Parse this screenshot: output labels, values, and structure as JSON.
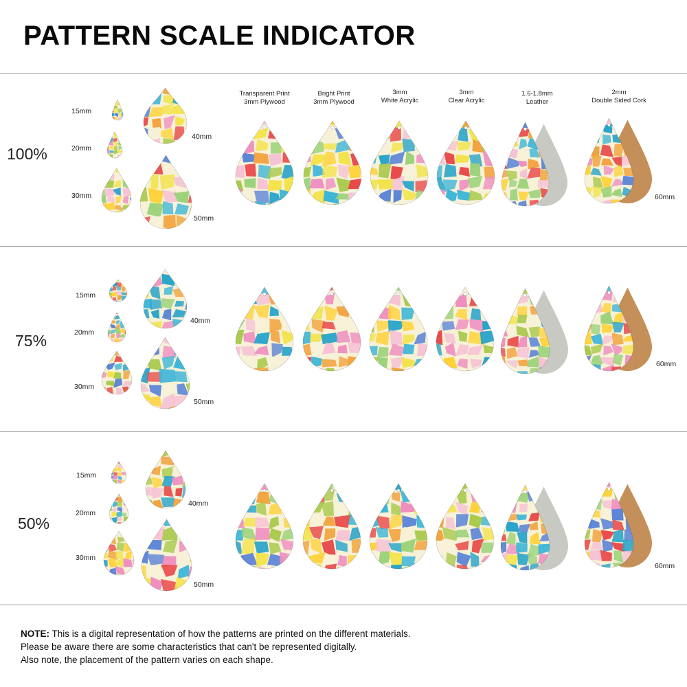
{
  "title": "PATTERN SCALE INDICATOR",
  "rows": [
    {
      "scale": "100%",
      "size_labels": [
        "15mm",
        "20mm",
        "30mm",
        "40mm",
        "50mm"
      ],
      "width_label": "60mm"
    },
    {
      "scale": "75%",
      "size_labels": [
        "15mm",
        "20mm",
        "30mm",
        "40mm",
        "50mm"
      ],
      "width_label": "60mm"
    },
    {
      "scale": "50%",
      "size_labels": [
        "15mm",
        "20mm",
        "30mm",
        "40mm",
        "50mm"
      ],
      "width_label": "60mm"
    }
  ],
  "materials": [
    {
      "line1": "Transparent Print",
      "line2": "3mm Plywood"
    },
    {
      "line1": "Bright Print",
      "line2": "3mm Plywood"
    },
    {
      "line1": "3mm",
      "line2": "White Acrylic"
    },
    {
      "line1": "3mm",
      "line2": "Clear Acrylic"
    },
    {
      "line1": "1.6-1.8mm",
      "line2": "Leather"
    },
    {
      "line1": "2mm",
      "line2": "Double Sided Cork"
    }
  ],
  "note": {
    "label": "NOTE:",
    "line1": " This is a digital representation of how the patterns are printed on the different materials.",
    "line2": "Please be aware there are some characteristics that can't be represented digitally.",
    "line3": "Also note, the placement of the pattern varies on each shape."
  },
  "colors": {
    "palette": [
      "#3fb6d8",
      "#f3e34a",
      "#e94b4b",
      "#ef8fc0",
      "#f2a23c",
      "#9bd27a",
      "#5b84d6",
      "#f7f1d8",
      "#27a3c9",
      "#f6c2d4",
      "#a8c94a",
      "#ffd23a"
    ],
    "leather_back": "#c9c9c4",
    "cork_back": "#c48f58",
    "line": "#9a9a9a"
  }
}
